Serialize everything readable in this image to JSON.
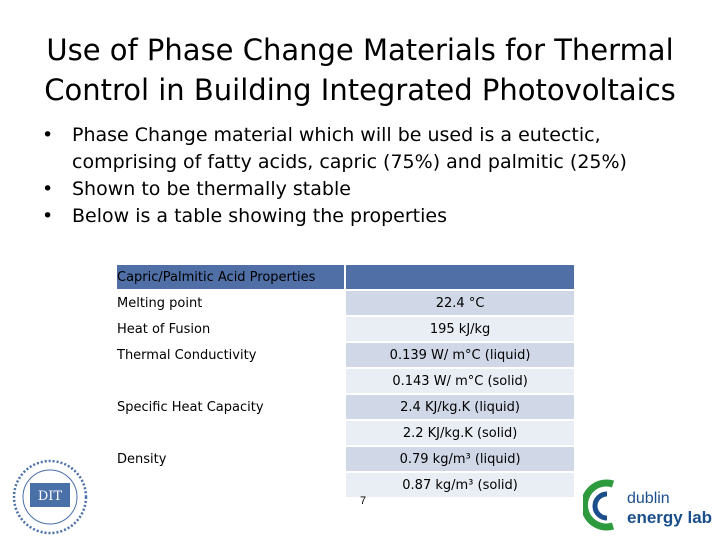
{
  "slide": {
    "title_line1": "Use of Phase Change Materials for Thermal",
    "title_line2": "Control in Building Integrated Photovoltaics",
    "bullets": [
      "Phase Change material which will be used is a eutectic, comprising of fatty acids, capric (75%) and palmitic (25%)",
      "Shown to be thermally stable",
      "Below is a table showing the properties"
    ],
    "bullet_glyph": "•",
    "page_number": "7"
  },
  "table": {
    "header": "Capric/Palmitic Acid Properties",
    "rows": [
      {
        "property": "Melting point",
        "value": "22.4 °C"
      },
      {
        "property": "Heat of Fusion",
        "value": "195 kJ/kg"
      },
      {
        "property": "Thermal Conductivity",
        "value": "0.139 W/ m°C (liquid)"
      },
      {
        "property": "",
        "value": "0.143 W/ m°C (solid)"
      },
      {
        "property": "Specific Heat Capacity",
        "value": "2.4 KJ/kg.K (liquid)"
      },
      {
        "property": "",
        "value": "2.2 KJ/kg.K (solid)"
      },
      {
        "property": "Density",
        "value": "0.79 kg/m³ (liquid)"
      },
      {
        "property": "",
        "value": "0.87 kg/m³ (solid)"
      }
    ]
  },
  "logos": {
    "dit_text": "DIT",
    "dublin_energy_lab_line1": "dublin",
    "dublin_energy_lab_line2": "energy lab."
  },
  "colors": {
    "table_header": "#4f6fa6",
    "band_dark": "#d0d8e8",
    "band_light": "#e9edf4",
    "del_green": "#2e9a3e",
    "del_blue": "#1b4f8c"
  }
}
